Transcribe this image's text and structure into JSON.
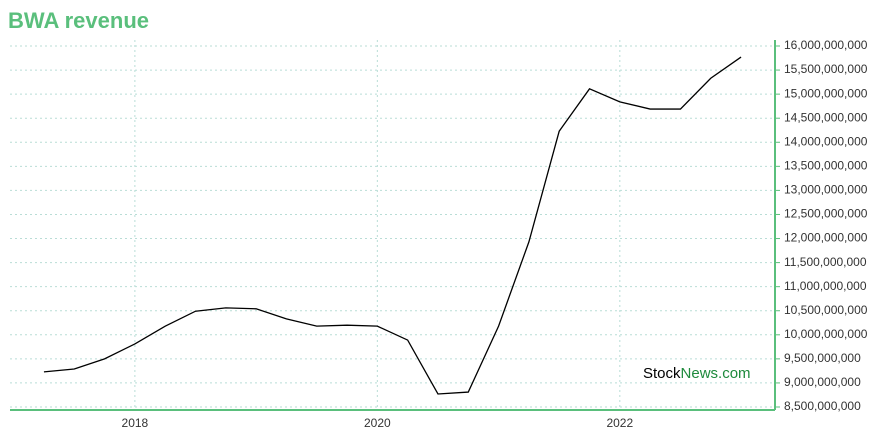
{
  "chart_data": {
    "type": "line",
    "title": "BWA revenue",
    "x": [
      2017.25,
      2017.5,
      2017.75,
      2018,
      2018.25,
      2018.5,
      2018.75,
      2019,
      2019.25,
      2019.5,
      2019.75,
      2020,
      2020.25,
      2020.5,
      2020.75,
      2021,
      2021.25,
      2021.5,
      2021.75,
      2022,
      2022.25,
      2022.5,
      2022.75,
      2023
    ],
    "series": [
      {
        "name": "revenue",
        "color": "#000000",
        "values": [
          9230000000,
          9290000000,
          9500000000,
          9810000000,
          10180000000,
          10490000000,
          10560000000,
          10540000000,
          10330000000,
          10180000000,
          10200000000,
          10180000000,
          9890000000,
          8770000000,
          8810000000,
          10180000000,
          11930000000,
          14230000000,
          15110000000,
          14840000000,
          14690000000,
          14690000000,
          15330000000,
          15770000000
        ]
      }
    ],
    "xlim": [
      2016.97,
      2023.28
    ],
    "xticks": [
      2018,
      2020,
      2022
    ],
    "ylim": [
      8500000000,
      16000000000
    ],
    "yticks": [
      {
        "value": 8500000000,
        "label": "8,500,000,000"
      },
      {
        "value": 9000000000,
        "label": "9,000,000,000"
      },
      {
        "value": 9500000000,
        "label": "9,500,000,000"
      },
      {
        "value": 10000000000,
        "label": "10,000,000,000"
      },
      {
        "value": 10500000000,
        "label": "10,500,000,000"
      },
      {
        "value": 11000000000,
        "label": "11,000,000,000"
      },
      {
        "value": 11500000000,
        "label": "11,500,000,000"
      },
      {
        "value": 12000000000,
        "label": "12,000,000,000"
      },
      {
        "value": 12500000000,
        "label": "12,500,000,000"
      },
      {
        "value": 13000000000,
        "label": "13,000,000,000"
      },
      {
        "value": 13500000000,
        "label": "13,500,000,000"
      },
      {
        "value": 14000000000,
        "label": "14,000,000,000"
      },
      {
        "value": 14500000000,
        "label": "14,500,000,000"
      },
      {
        "value": 15000000000,
        "label": "15,000,000,000"
      },
      {
        "value": 15500000000,
        "label": "15,500,000,000"
      },
      {
        "value": 16000000000,
        "label": "16,000,000,000"
      }
    ],
    "grid": true,
    "watermark": [
      "Stock",
      "News.com"
    ]
  }
}
